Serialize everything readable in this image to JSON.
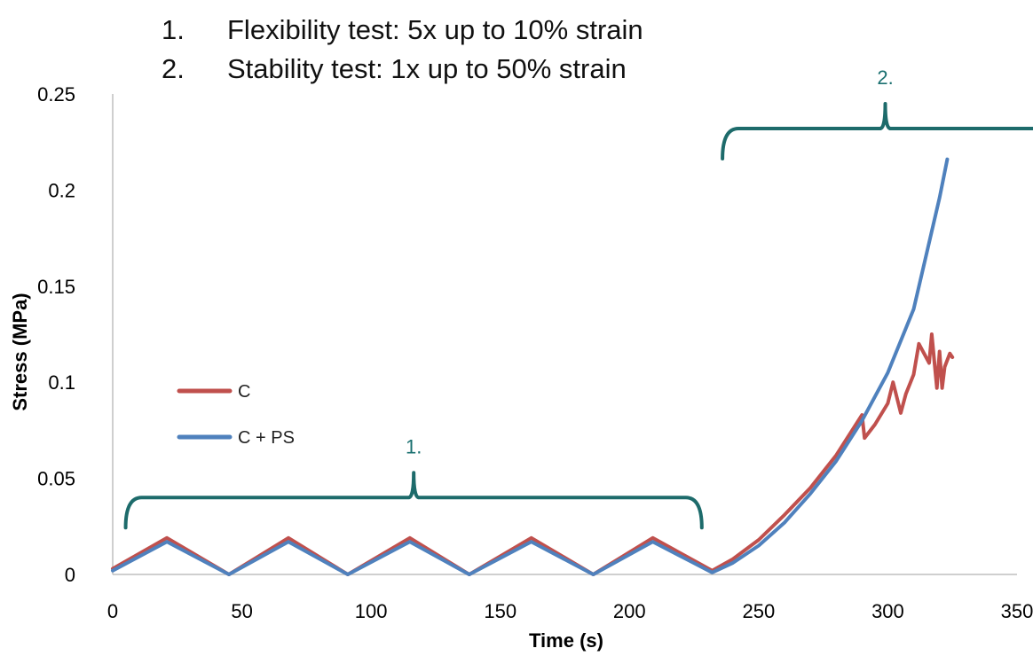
{
  "header": {
    "items": [
      {
        "number": "1.",
        "text": "Flexibility test: 5x up to 10% strain"
      },
      {
        "number": "2.",
        "text": "Stability test: 1x up to 50% strain"
      }
    ]
  },
  "brackets": [
    {
      "label": "1.",
      "x_start": 5,
      "x_end": 228,
      "y": 0.04
    },
    {
      "label": "2.",
      "x_start": 236,
      "x_end": 362,
      "y": 0.232
    }
  ],
  "colors": {
    "C": "#c0504d",
    "C + PS": "#4f81bd",
    "bracket": "#1d6b6b",
    "axis": "#bfbfbf"
  },
  "chart_data": {
    "type": "line",
    "xlabel": "Time (s)",
    "ylabel": "Stress (MPa)",
    "xlim": [
      0,
      350
    ],
    "ylim": [
      0,
      0.25
    ],
    "xticks": [
      0,
      50,
      100,
      150,
      200,
      250,
      300,
      350
    ],
    "yticks": [
      0,
      0.05,
      0.1,
      0.15,
      0.2,
      0.25
    ],
    "legend_position": "center-left",
    "grid": false,
    "series": [
      {
        "name": "C",
        "x": [
          0,
          21,
          45,
          68,
          91,
          115,
          138,
          162,
          186,
          209,
          232,
          240,
          250,
          260,
          270,
          280,
          290,
          291,
          295,
          300,
          302,
          305,
          307,
          310,
          312,
          316,
          317,
          319,
          320,
          321,
          322,
          324,
          325
        ],
        "y": [
          0.003,
          0.019,
          0,
          0.019,
          0,
          0.019,
          0,
          0.019,
          0,
          0.019,
          0.002,
          0.008,
          0.018,
          0.031,
          0.045,
          0.062,
          0.083,
          0.071,
          0.078,
          0.089,
          0.1,
          0.084,
          0.094,
          0.104,
          0.12,
          0.11,
          0.125,
          0.097,
          0.116,
          0.097,
          0.108,
          0.115,
          0.113
        ]
      },
      {
        "name": "C + PS",
        "x": [
          0,
          21,
          45,
          68,
          91,
          115,
          138,
          162,
          186,
          209,
          232,
          240,
          250,
          260,
          270,
          280,
          290,
          300,
          310,
          320,
          323
        ],
        "y": [
          0.002,
          0.017,
          0,
          0.017,
          0,
          0.017,
          0,
          0.017,
          0,
          0.017,
          0.001,
          0.006,
          0.015,
          0.027,
          0.042,
          0.059,
          0.08,
          0.105,
          0.138,
          0.196,
          0.216
        ]
      }
    ]
  }
}
